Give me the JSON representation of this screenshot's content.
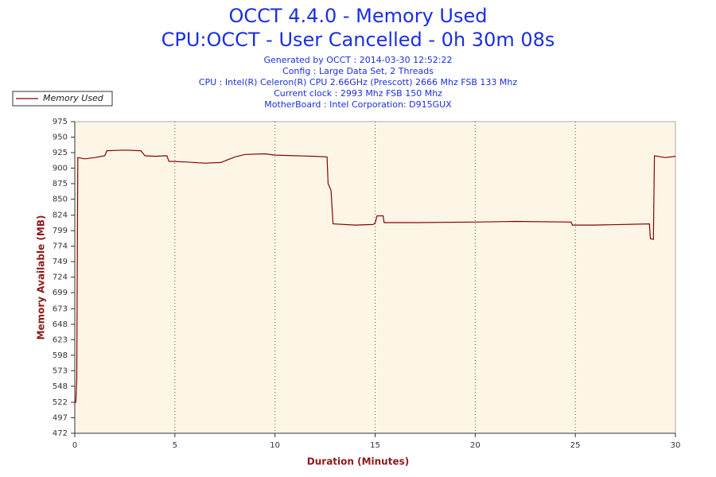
{
  "chart_data": {
    "type": "line",
    "title": "OCCT 4.4.0 - Memory Used",
    "subtitle": "CPU:OCCT - User Cancelled - 0h 30m 08s",
    "info_lines": [
      "Generated by OCCT : 2014-03-30 12:52:22",
      "Config : Large Data Set, 2 Threads",
      "CPU : Intel(R) Celeron(R) CPU 2.66GHz (Prescott) 2666 Mhz FSB 133 Mhz",
      "Current clock : 2993 Mhz FSB 150 Mhz",
      "MotherBoard : Intel Corporation: D915GUX"
    ],
    "x_label": "Duration (Minutes)",
    "y_label": "Memory Available (MB)",
    "legend": "top-left",
    "grid": "x",
    "xlim": [
      0,
      30
    ],
    "xticks": [
      0,
      5,
      10,
      15,
      20,
      25,
      30
    ],
    "ylim": [
      472,
      975
    ],
    "yticks": [
      472,
      497,
      522,
      548,
      573,
      598,
      623,
      648,
      673,
      699,
      724,
      749,
      774,
      799,
      824,
      850,
      875,
      900,
      925,
      950,
      975
    ],
    "x": [
      0,
      0.05,
      0.1,
      0.15,
      0.5,
      1,
      1.5,
      1.6,
      2.5,
      3.3,
      3.4,
      3.5,
      4,
      4.6,
      4.7,
      5.5,
      6.5,
      7.3,
      7.6,
      8,
      8.5,
      9.5,
      10,
      11,
      12,
      12.6,
      12.65,
      12.8,
      12.9,
      14,
      14.9,
      15,
      15.1,
      15.4,
      15.45,
      17,
      20,
      22,
      24.8,
      24.85,
      26,
      28.7,
      28.75,
      28.9,
      28.95,
      29.5,
      30
    ],
    "series": [
      {
        "name": "Memory Used",
        "color": "#8b0000",
        "values": [
          522,
          522,
          560,
          917,
          915,
          917,
          920,
          928,
          929,
          928,
          924,
          920,
          919,
          920,
          911,
          910,
          908,
          909,
          913,
          918,
          922,
          923,
          921,
          920,
          919,
          918,
          875,
          864,
          810,
          808,
          809,
          811,
          823,
          823,
          812,
          812,
          813,
          814,
          813,
          808,
          808,
          810,
          786,
          785,
          920,
          917,
          919
        ]
      }
    ]
  }
}
